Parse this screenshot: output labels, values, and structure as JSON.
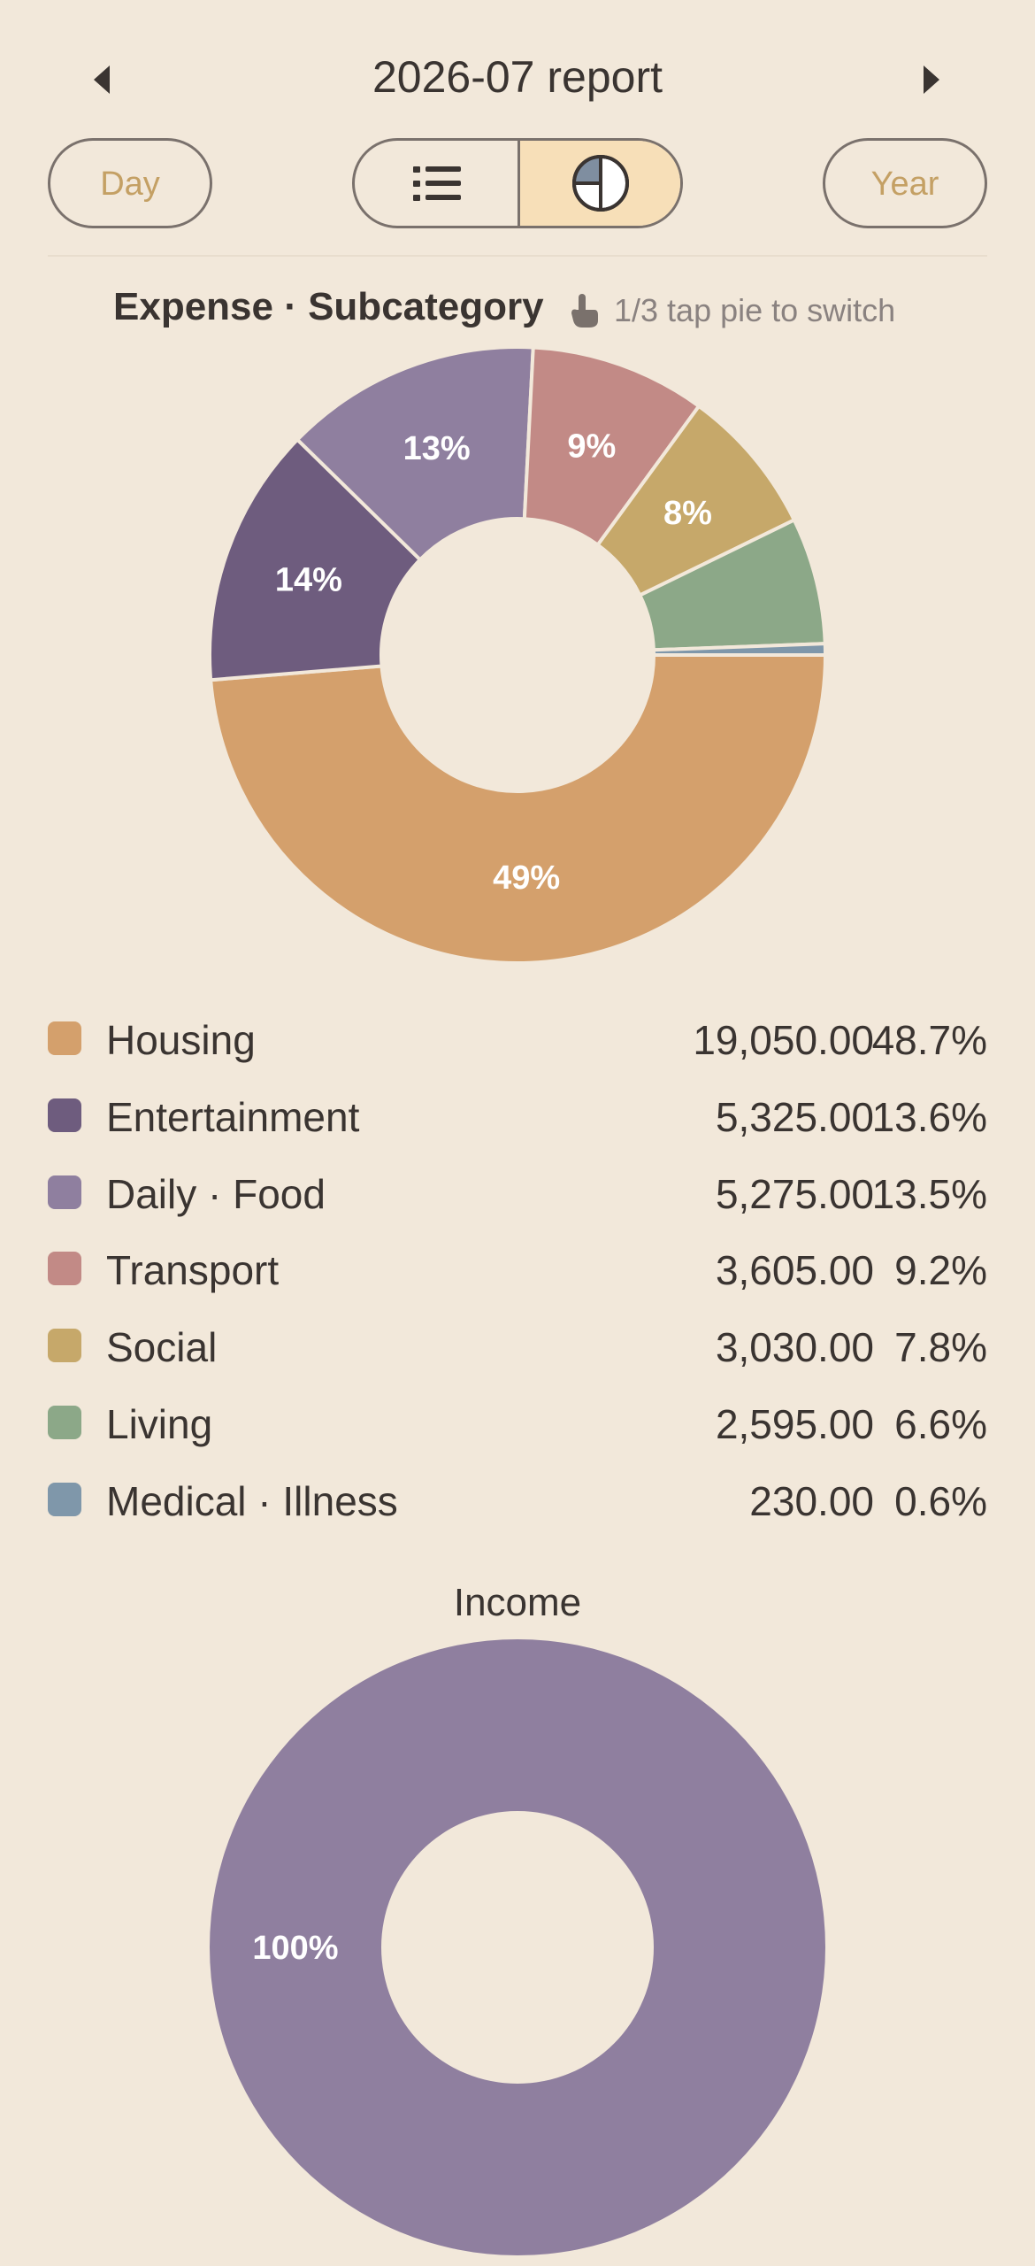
{
  "header": {
    "title": "2026-07 report"
  },
  "controls": {
    "day_label": "Day",
    "year_label": "Year"
  },
  "expense_chart": {
    "title": "Expense · Subcategory",
    "hint": "1/3 tap pie to switch"
  },
  "colors": {
    "background": "#f2e8da",
    "accent_text": "#c4a064",
    "selected_segment": "#f7dfb8"
  },
  "chart_data": [
    {
      "type": "pie",
      "title": "Expense · Subcategory",
      "donut": true,
      "categories": [
        "Housing",
        "Entertainment",
        "Daily · Food",
        "Transport",
        "Social",
        "Living",
        "Medical · Illness"
      ],
      "values": [
        19050.0,
        5325.0,
        5275.0,
        3605.0,
        3030.0,
        2595.0,
        230.0
      ],
      "amount_labels": [
        "19,050.00",
        "5,325.00",
        "5,275.00",
        "3,605.00",
        "3,030.00",
        "2,595.00",
        "230.00"
      ],
      "percent_labels": [
        "48.7%",
        "13.6%",
        "13.5%",
        "9.2%",
        "7.8%",
        "6.6%",
        "0.6%"
      ],
      "slice_labels": [
        "49%",
        "14%",
        "13%",
        "9%",
        "8%",
        "",
        ""
      ],
      "colors": [
        "#d4a06c",
        "#6e5c7e",
        "#8f7f9f",
        "#c28a86",
        "#c6a86a",
        "#8ca888",
        "#7f97aa"
      ],
      "legend": "below"
    },
    {
      "type": "pie",
      "title": "Income",
      "donut": true,
      "categories": [
        ""
      ],
      "values": [
        100
      ],
      "slice_labels": [
        "100%"
      ],
      "colors": [
        "#8f7f9f"
      ]
    }
  ]
}
